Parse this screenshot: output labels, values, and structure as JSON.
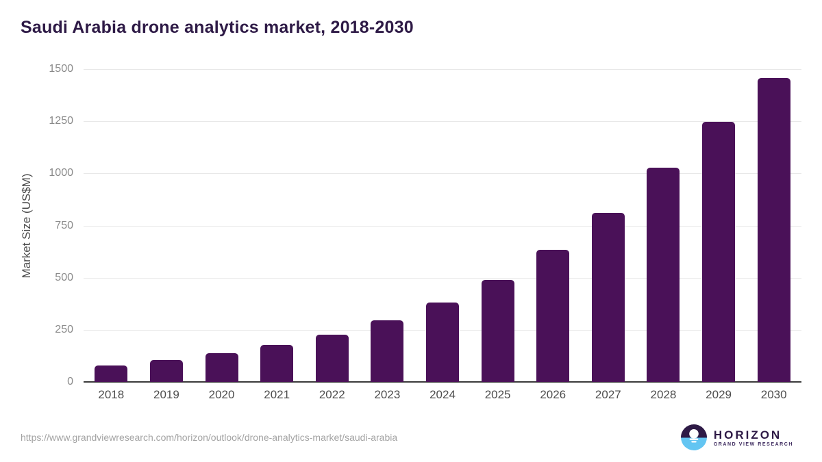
{
  "chart_data": {
    "type": "bar",
    "title": "Saudi Arabia drone analytics market, 2018-2030",
    "xlabel": "",
    "ylabel": "Market Size (US$M)",
    "categories": [
      "2018",
      "2019",
      "2020",
      "2021",
      "2022",
      "2023",
      "2024",
      "2025",
      "2026",
      "2027",
      "2028",
      "2029",
      "2030"
    ],
    "values": [
      78,
      105,
      138,
      177,
      228,
      296,
      382,
      490,
      634,
      812,
      1029,
      1247,
      1456
    ],
    "ylim": [
      0,
      1500
    ],
    "yticks": [
      0,
      250,
      500,
      750,
      1000,
      1250,
      1500
    ],
    "grid": true,
    "legend": false
  },
  "footer": {
    "source_url": "https://www.grandviewresearch.com/horizon/outlook/drone-analytics-market/saudi-arabia",
    "logo_text": "HORIZON",
    "logo_subtext": "GRAND VIEW RESEARCH"
  },
  "colors": {
    "bar": "#4a1158",
    "title": "#2e1a46",
    "grid": "#e8e8e8",
    "axis": "#3a3a3a",
    "y_tick": "#8a8a8a",
    "x_tick": "#4d4d4d",
    "url": "#a3a3a3",
    "logo_purple": "#2e1a46",
    "logo_blue": "#63c5f2"
  }
}
